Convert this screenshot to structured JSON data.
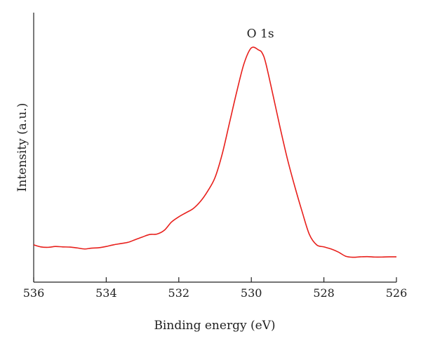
{
  "chart_data": {
    "type": "line",
    "title": "",
    "xlabel": "Binding energy (eV)",
    "ylabel": "Intensity (a.u.)",
    "xlim": [
      536,
      526
    ],
    "x_reversed": true,
    "y_ticks_shown": false,
    "xticks": [
      536,
      534,
      532,
      530,
      528,
      526
    ],
    "xtick_labels": [
      "536",
      "534",
      "532",
      "530",
      "528",
      "526"
    ],
    "grid": false,
    "annotations": [
      {
        "text": "O 1s",
        "x": 529.75,
        "y": 1.04
      }
    ],
    "series": [
      {
        "color": "#e8201c",
        "x": [
          536.0,
          535.8,
          535.6,
          535.4,
          535.2,
          535.0,
          534.8,
          534.6,
          534.4,
          534.2,
          534.0,
          533.8,
          533.6,
          533.4,
          533.2,
          533.0,
          532.8,
          532.6,
          532.4,
          532.2,
          532.0,
          531.8,
          531.6,
          531.4,
          531.2,
          531.0,
          530.8,
          530.6,
          530.4,
          530.2,
          530.0,
          529.8,
          529.7,
          529.6,
          529.4,
          529.2,
          529.0,
          528.8,
          528.6,
          528.4,
          528.2,
          528.0,
          527.8,
          527.6,
          527.4,
          527.2,
          527.0,
          526.8,
          526.6,
          526.4,
          526.2,
          526.0
        ],
        "y": [
          0.06,
          0.05,
          0.048,
          0.052,
          0.05,
          0.049,
          0.045,
          0.04,
          0.044,
          0.046,
          0.052,
          0.06,
          0.066,
          0.072,
          0.085,
          0.098,
          0.11,
          0.112,
          0.13,
          0.17,
          0.195,
          0.215,
          0.235,
          0.27,
          0.32,
          0.385,
          0.5,
          0.65,
          0.8,
          0.935,
          1.01,
          1.0,
          0.985,
          0.935,
          0.78,
          0.62,
          0.47,
          0.34,
          0.22,
          0.11,
          0.06,
          0.05,
          0.04,
          0.025,
          0.005,
          0.0,
          0.002,
          0.003,
          0.001,
          0.001,
          0.002,
          0.002
        ]
      }
    ]
  }
}
